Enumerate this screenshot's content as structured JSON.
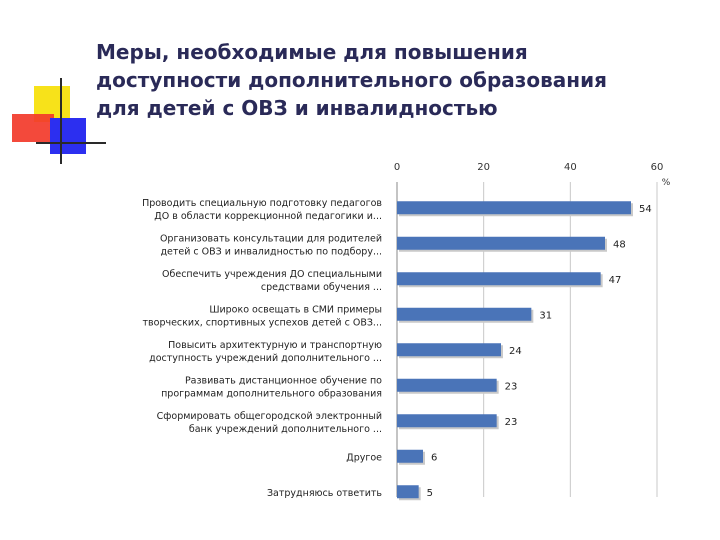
{
  "slide": {
    "title_lines": [
      "Меры, необходимые для повышения",
      "доступности дополнительного образования",
      "для детей с ОВЗ и инвалидностью"
    ]
  },
  "chart_data": {
    "type": "bar",
    "orientation": "horizontal",
    "title": "",
    "xlabel": "%",
    "ylabel": "",
    "xlim": [
      0,
      60
    ],
    "x_ticks": [
      "0",
      "20",
      "40",
      "60"
    ],
    "grid": true,
    "legend": "none",
    "bar_color": "#4a74b8",
    "categories": [
      [
        "Проводить специальную подготовку педагогов",
        "ДО в области коррекционной педагогики и..."
      ],
      [
        "Организовать консультации для родителей",
        "детей с ОВЗ и инвалидностью по подбору..."
      ],
      [
        "Обеспечить учреждения ДО специальными",
        "средствами обучения ..."
      ],
      [
        "Широко освещать в СМИ примеры",
        "творческих, спортивных успехов детей с ОВЗ..."
      ],
      [
        "Повысить архитектурную и транспортную",
        "доступность учреждений дополнительного ..."
      ],
      [
        "Развивать дистанционное обучение по",
        "программам дополнительного образования"
      ],
      [
        "Сформировать общегородской электронный",
        "банк учреждений дополнительного ..."
      ],
      [
        "Другое"
      ],
      [
        "Затрудняюсь ответить"
      ]
    ],
    "values": [
      54,
      48,
      47,
      31,
      24,
      23,
      23,
      6,
      5
    ],
    "data_labels": [
      "54",
      "48",
      "47",
      "31",
      "24",
      "23",
      "23",
      "6",
      "5"
    ]
  }
}
